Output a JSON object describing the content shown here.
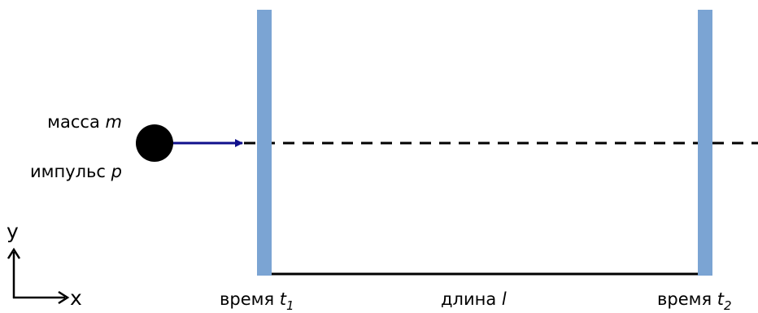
{
  "colors": {
    "detector": "#7BA4D3",
    "arrow": "#10108C",
    "particle": "#000000",
    "line": "#000000"
  },
  "particle": {
    "mass_label": "масса ",
    "mass_symbol": "m",
    "momentum_label": "импульс ",
    "momentum_symbol": "p"
  },
  "detectors": [
    {
      "label": "время ",
      "symbol": "t",
      "subscript": "1"
    },
    {
      "label": "время ",
      "symbol": "t",
      "subscript": "2"
    }
  ],
  "distance": {
    "label": "длина ",
    "symbol": "l"
  },
  "axes": {
    "x_label": "x",
    "y_label": "y"
  }
}
